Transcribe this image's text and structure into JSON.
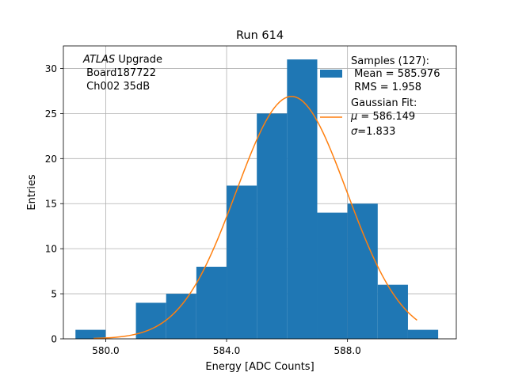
{
  "chart_data": {
    "type": "bar",
    "title": "Run 614",
    "xlabel": "Energy [ADC Counts]",
    "ylabel": "Entries",
    "xlim": [
      578.6,
      591.6
    ],
    "ylim": [
      0,
      32.5
    ],
    "grid": true,
    "x_ticks": [
      {
        "value": 580,
        "label": "580.0"
      },
      {
        "value": 584,
        "label": "584.0"
      },
      {
        "value": 588,
        "label": "588.0"
      }
    ],
    "y_ticks": [
      {
        "value": 0,
        "label": "0"
      },
      {
        "value": 5,
        "label": "5"
      },
      {
        "value": 10,
        "label": "10"
      },
      {
        "value": 15,
        "label": "15"
      },
      {
        "value": 20,
        "label": "20"
      },
      {
        "value": 25,
        "label": "25"
      },
      {
        "value": 30,
        "label": "30"
      }
    ],
    "histogram": {
      "name": "Samples (127):",
      "color": "#1f77b4",
      "bin_edges": [
        579,
        580,
        581,
        582,
        583,
        584,
        585,
        586,
        587,
        588,
        589,
        590,
        591
      ],
      "counts": [
        1,
        0,
        4,
        5,
        8,
        17,
        25,
        31,
        14,
        15,
        6,
        1
      ]
    },
    "fit": {
      "name": "Gaussian Fit:",
      "color": "#ff7f0e",
      "mu": 586.149,
      "sigma": 1.833,
      "amplitude": 26.9,
      "x_range": [
        579.6,
        590.3
      ]
    },
    "annotation": {
      "italic_part": "ATLAS",
      "normal_part": " Upgrade",
      "line2": " Board187722",
      "line3": " Ch002 35dB"
    },
    "legend": {
      "position": "top-right",
      "samples_label": "Samples (127):",
      "mean_text": " Mean = 585.976",
      "rms_text": " RMS = 1.958",
      "fit_label": "Gaussian Fit:",
      "mu_symbol": "μ",
      "mu_value": " = 586.149",
      "sigma_symbol": "σ",
      "sigma_value": "=1.833"
    }
  }
}
